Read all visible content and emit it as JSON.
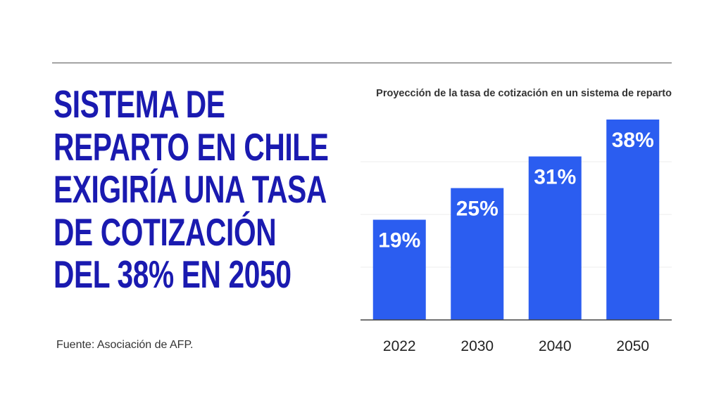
{
  "headline": {
    "lines": [
      "SISTEMA DE",
      "REPARTO EN CHILE",
      "EXIGIRÍA UNA TASA",
      "DE COTIZACIÓN",
      "DEL 38% EN 2050"
    ]
  },
  "source": "Fuente: Asociación de AFP.",
  "chart_data": {
    "type": "bar",
    "title": "Proyección de la tasa de cotización en un sistema de reparto",
    "categories": [
      "2022",
      "2030",
      "2040",
      "2050"
    ],
    "values": [
      19,
      25,
      31,
      38
    ],
    "value_labels": [
      "19%",
      "25%",
      "31%",
      "38%"
    ],
    "ylim": [
      0,
      40
    ],
    "grid": true,
    "bar_color": "#2b5df0",
    "headline_color": "#1a1ab0"
  }
}
